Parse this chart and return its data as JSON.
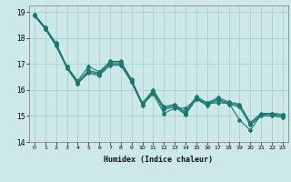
{
  "title": "",
  "xlabel": "Humidex (Indice chaleur)",
  "bg_color": "#cce8e8",
  "line_color": "#1a7a6e",
  "grid_color": "#aacece",
  "xlim": [
    -0.5,
    23.5
  ],
  "ylim": [
    14.0,
    19.25
  ],
  "yticks": [
    14,
    15,
    16,
    17,
    18,
    19
  ],
  "xticks": [
    0,
    1,
    2,
    3,
    4,
    5,
    6,
    7,
    8,
    9,
    10,
    11,
    12,
    13,
    14,
    15,
    16,
    17,
    18,
    19,
    20,
    21,
    22,
    23
  ],
  "lines": [
    [
      18.9,
      18.4,
      17.8,
      16.9,
      16.35,
      16.9,
      16.7,
      17.1,
      17.1,
      16.4,
      15.45,
      15.85,
      15.1,
      15.3,
      15.3,
      15.65,
      15.5,
      15.5,
      15.5,
      14.85,
      14.45,
      15.05,
      15.1,
      15.05
    ],
    [
      18.9,
      18.4,
      17.75,
      16.9,
      16.3,
      16.75,
      16.65,
      17.05,
      17.05,
      16.35,
      15.5,
      16.0,
      15.35,
      15.45,
      15.15,
      15.75,
      15.5,
      15.7,
      15.55,
      15.45,
      14.75,
      15.1,
      15.1,
      15.05
    ],
    [
      18.85,
      18.35,
      17.7,
      16.85,
      16.25,
      16.7,
      16.6,
      17.0,
      17.0,
      16.3,
      15.45,
      15.95,
      15.3,
      15.4,
      15.1,
      15.7,
      15.45,
      15.65,
      15.5,
      15.4,
      14.7,
      15.05,
      15.05,
      15.0
    ],
    [
      18.85,
      18.35,
      17.7,
      16.85,
      16.25,
      16.65,
      16.55,
      16.95,
      16.95,
      16.3,
      15.4,
      15.9,
      15.25,
      15.35,
      15.05,
      15.65,
      15.4,
      15.6,
      15.45,
      15.35,
      14.65,
      15.0,
      15.0,
      14.95
    ]
  ]
}
